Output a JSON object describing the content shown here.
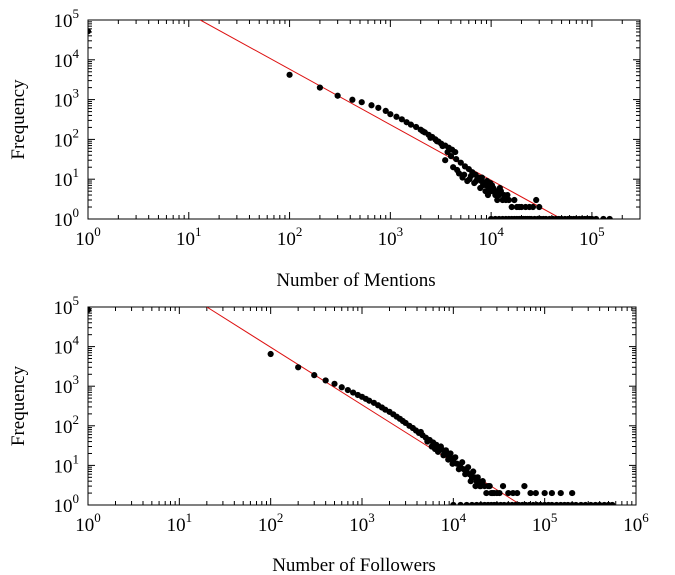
{
  "chart_data": [
    {
      "type": "scatter",
      "xlabel": "Number of Mentions",
      "ylabel": "Frequency",
      "x_scale": "log",
      "y_scale": "log",
      "xlim": [
        1,
        300000
      ],
      "ylim": [
        1,
        100000
      ],
      "x_ticks": [
        1,
        10,
        100,
        1000,
        10000,
        100000
      ],
      "y_ticks": [
        1,
        10,
        100,
        1000,
        10000,
        100000
      ],
      "grid": false,
      "fit_line": {
        "color": "#dd1111",
        "points": [
          [
            13,
            100000
          ],
          [
            50000,
            1
          ]
        ]
      },
      "marker_color": "#000000",
      "points": [
        [
          1,
          52000
        ],
        [
          100,
          4200
        ],
        [
          200,
          2000
        ],
        [
          300,
          1250
        ],
        [
          420,
          990
        ],
        [
          520,
          860
        ],
        [
          650,
          720
        ],
        [
          760,
          620
        ],
        [
          900,
          520
        ],
        [
          1000,
          430
        ],
        [
          1150,
          370
        ],
        [
          1300,
          320
        ],
        [
          1450,
          270
        ],
        [
          1600,
          235
        ],
        [
          1800,
          205
        ],
        [
          2000,
          175
        ],
        [
          2200,
          150
        ],
        [
          2400,
          130
        ],
        [
          2600,
          115
        ],
        [
          2800,
          100
        ],
        [
          3000,
          88
        ],
        [
          3200,
          78
        ],
        [
          3500,
          70
        ],
        [
          3800,
          62
        ],
        [
          4100,
          55
        ],
        [
          4400,
          48
        ],
        [
          2100,
          160
        ],
        [
          2500,
          110
        ],
        [
          2900,
          90
        ],
        [
          3300,
          68
        ],
        [
          3700,
          48
        ],
        [
          4000,
          38
        ],
        [
          4500,
          32
        ],
        [
          5000,
          26
        ],
        [
          5500,
          21
        ],
        [
          6000,
          18
        ],
        [
          6500,
          15
        ],
        [
          7000,
          13
        ],
        [
          7500,
          11
        ],
        [
          8000,
          9
        ],
        [
          8500,
          8
        ],
        [
          9000,
          7
        ],
        [
          9500,
          6
        ],
        [
          10000,
          5
        ],
        [
          11000,
          4
        ],
        [
          12000,
          4
        ],
        [
          13000,
          3
        ],
        [
          14000,
          3
        ],
        [
          3500,
          30
        ],
        [
          4200,
          20
        ],
        [
          4800,
          14
        ],
        [
          5200,
          11
        ],
        [
          5800,
          9
        ],
        [
          6300,
          12
        ],
        [
          6800,
          8
        ],
        [
          7300,
          10
        ],
        [
          7800,
          6
        ],
        [
          8300,
          7
        ],
        [
          8800,
          5
        ],
        [
          9300,
          4
        ],
        [
          9800,
          8
        ],
        [
          10500,
          6
        ],
        [
          11500,
          3
        ],
        [
          12500,
          5
        ],
        [
          13500,
          4
        ],
        [
          15000,
          3
        ],
        [
          16000,
          2
        ],
        [
          17000,
          3
        ],
        [
          18000,
          2
        ],
        [
          19000,
          2
        ],
        [
          20000,
          2
        ],
        [
          22000,
          2
        ],
        [
          24000,
          2
        ],
        [
          26000,
          2
        ],
        [
          28000,
          3
        ],
        [
          30000,
          2
        ],
        [
          4600,
          17
        ],
        [
          5400,
          13
        ],
        [
          6100,
          10
        ],
        [
          7100,
          9
        ],
        [
          8100,
          11
        ],
        [
          9100,
          9
        ],
        [
          10200,
          7
        ],
        [
          11200,
          5
        ],
        [
          12200,
          6
        ],
        [
          14500,
          4
        ],
        [
          10000,
          1
        ],
        [
          11000,
          1
        ],
        [
          12000,
          1
        ],
        [
          13000,
          1
        ],
        [
          14000,
          1
        ],
        [
          15000,
          1
        ],
        [
          16000,
          1
        ],
        [
          17000,
          1
        ],
        [
          18000,
          1
        ],
        [
          19000,
          1
        ],
        [
          20000,
          1
        ],
        [
          21000,
          1
        ],
        [
          22000,
          1
        ],
        [
          23000,
          1
        ],
        [
          24000,
          1
        ],
        [
          25000,
          1
        ],
        [
          27000,
          1
        ],
        [
          29000,
          1
        ],
        [
          31000,
          1
        ],
        [
          33000,
          1
        ],
        [
          35000,
          1
        ],
        [
          38000,
          1
        ],
        [
          41000,
          1
        ],
        [
          44000,
          1
        ],
        [
          47000,
          1
        ],
        [
          50000,
          1
        ],
        [
          54000,
          1
        ],
        [
          58000,
          1
        ],
        [
          62000,
          1
        ],
        [
          66000,
          1
        ],
        [
          70000,
          1
        ],
        [
          75000,
          1
        ],
        [
          80000,
          1
        ],
        [
          85000,
          1
        ],
        [
          90000,
          1
        ],
        [
          95000,
          1
        ],
        [
          100000,
          1
        ],
        [
          110000,
          1
        ],
        [
          130000,
          1
        ],
        [
          150000,
          1
        ]
      ]
    },
    {
      "type": "scatter",
      "xlabel": "Number of Followers",
      "ylabel": "Frequency",
      "x_scale": "log",
      "y_scale": "log",
      "xlim": [
        1,
        1000000
      ],
      "ylim": [
        1,
        100000
      ],
      "x_ticks": [
        1,
        10,
        100,
        1000,
        10000,
        100000,
        1000000
      ],
      "y_ticks": [
        1,
        10,
        100,
        1000,
        10000,
        100000
      ],
      "grid": false,
      "fit_line": {
        "color": "#dd1111",
        "points": [
          [
            20,
            100000
          ],
          [
            55000,
            1
          ]
        ]
      },
      "marker_color": "#000000",
      "points": [
        [
          1,
          85000
        ],
        [
          100,
          6500
        ],
        [
          200,
          3000
        ],
        [
          300,
          1900
        ],
        [
          400,
          1400
        ],
        [
          500,
          1150
        ],
        [
          600,
          940
        ],
        [
          700,
          800
        ],
        [
          800,
          690
        ],
        [
          900,
          600
        ],
        [
          1000,
          540
        ],
        [
          1100,
          480
        ],
        [
          1200,
          430
        ],
        [
          1350,
          380
        ],
        [
          1500,
          330
        ],
        [
          1650,
          290
        ],
        [
          1800,
          255
        ],
        [
          2000,
          225
        ],
        [
          2200,
          195
        ],
        [
          2400,
          170
        ],
        [
          2600,
          150
        ],
        [
          2800,
          132
        ],
        [
          3000,
          118
        ],
        [
          3300,
          100
        ],
        [
          3600,
          88
        ],
        [
          3900,
          76
        ],
        [
          4200,
          66
        ],
        [
          4600,
          58
        ],
        [
          5000,
          50
        ],
        [
          5500,
          44
        ],
        [
          6000,
          38
        ],
        [
          6500,
          33
        ],
        [
          7000,
          29
        ],
        [
          7500,
          25
        ],
        [
          8000,
          22
        ],
        [
          8500,
          19
        ],
        [
          9000,
          17
        ],
        [
          9500,
          15
        ],
        [
          10000,
          13
        ],
        [
          11000,
          11
        ],
        [
          12000,
          9
        ],
        [
          13000,
          8
        ],
        [
          14000,
          7
        ],
        [
          15000,
          6
        ],
        [
          16000,
          5
        ],
        [
          17000,
          5
        ],
        [
          18000,
          4
        ],
        [
          19000,
          4
        ],
        [
          20000,
          3
        ],
        [
          22000,
          3
        ],
        [
          24000,
          3
        ],
        [
          26000,
          2
        ],
        [
          28000,
          2
        ],
        [
          30000,
          2
        ],
        [
          4400,
          70
        ],
        [
          5200,
          40
        ],
        [
          5800,
          30
        ],
        [
          6300,
          26
        ],
        [
          6800,
          22
        ],
        [
          7300,
          30
        ],
        [
          7800,
          18
        ],
        [
          8300,
          24
        ],
        [
          8800,
          14
        ],
        [
          9300,
          20
        ],
        [
          9800,
          11
        ],
        [
          10500,
          16
        ],
        [
          11500,
          8
        ],
        [
          12500,
          12
        ],
        [
          13500,
          6
        ],
        [
          14500,
          9
        ],
        [
          15500,
          4
        ],
        [
          16500,
          7
        ],
        [
          17500,
          3
        ],
        [
          18500,
          5
        ],
        [
          19500,
          3
        ],
        [
          21000,
          4
        ],
        [
          23000,
          2
        ],
        [
          25000,
          3
        ],
        [
          27000,
          2
        ],
        [
          32000,
          2
        ],
        [
          35000,
          3
        ],
        [
          40000,
          2
        ],
        [
          45000,
          2
        ],
        [
          50000,
          2
        ],
        [
          60000,
          3
        ],
        [
          70000,
          2
        ],
        [
          80000,
          2
        ],
        [
          100000,
          2
        ],
        [
          120000,
          2
        ],
        [
          150000,
          2
        ],
        [
          200000,
          2
        ],
        [
          10000,
          1
        ],
        [
          12000,
          1
        ],
        [
          14000,
          1
        ],
        [
          16000,
          1
        ],
        [
          18000,
          1
        ],
        [
          20000,
          1
        ],
        [
          22000,
          1
        ],
        [
          24000,
          1
        ],
        [
          26000,
          1
        ],
        [
          28000,
          1
        ],
        [
          30000,
          1
        ],
        [
          33000,
          1
        ],
        [
          36000,
          1
        ],
        [
          40000,
          1
        ],
        [
          44000,
          1
        ],
        [
          48000,
          1
        ],
        [
          52000,
          1
        ],
        [
          57000,
          1
        ],
        [
          62000,
          1
        ],
        [
          68000,
          1
        ],
        [
          75000,
          1
        ],
        [
          82000,
          1
        ],
        [
          90000,
          1
        ],
        [
          100000,
          1
        ],
        [
          110000,
          1
        ],
        [
          120000,
          1
        ],
        [
          135000,
          1
        ],
        [
          150000,
          1
        ],
        [
          165000,
          1
        ],
        [
          180000,
          1
        ],
        [
          200000,
          1
        ],
        [
          220000,
          1
        ],
        [
          250000,
          1
        ],
        [
          280000,
          1
        ],
        [
          320000,
          1
        ],
        [
          360000,
          1
        ],
        [
          400000,
          1
        ],
        [
          450000,
          1
        ],
        [
          500000,
          1
        ],
        [
          550000,
          1
        ]
      ]
    }
  ]
}
